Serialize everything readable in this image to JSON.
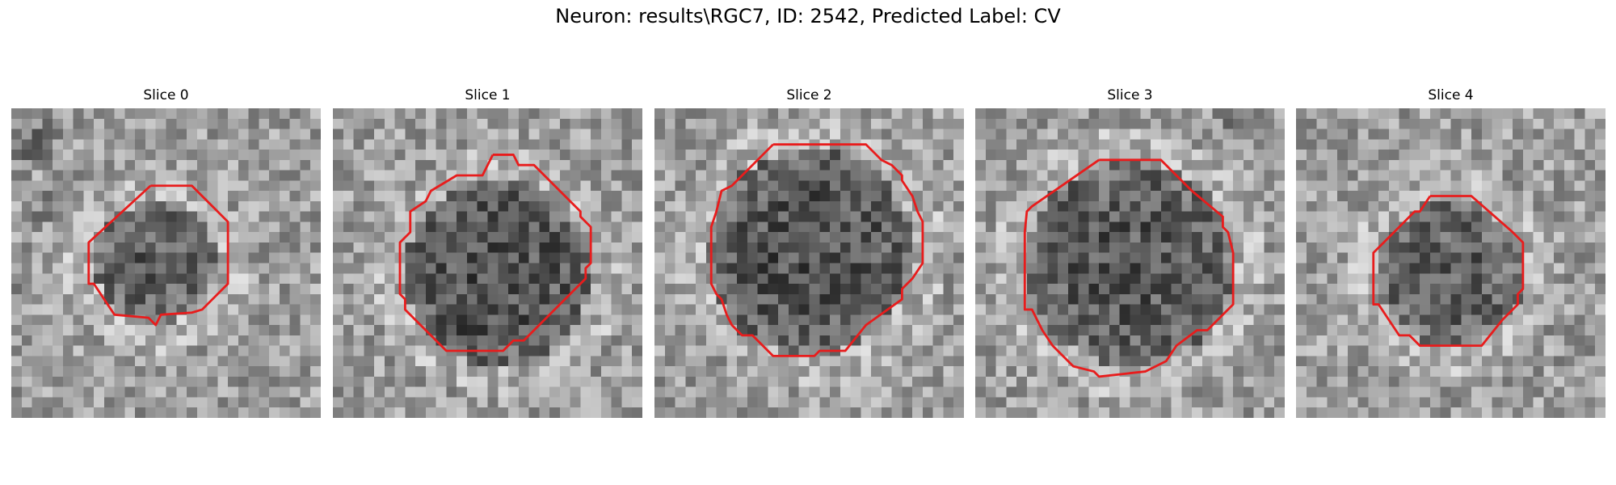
{
  "figure": {
    "title": "Neuron: results\\RGC7, ID: 2542, Predicted Label: CV",
    "colors": {
      "contour": "#e81c1c",
      "background": "#ffffff"
    },
    "grid_size": 30,
    "panels": [
      {
        "label": "Slice 0",
        "seed": 11,
        "dark_center": [
          14,
          15
        ],
        "dark_radius": 6,
        "dark_level": 0.25,
        "dark_blobs": [
          [
            2,
            3,
            3,
            0.25
          ],
          [
            4,
            9,
            3,
            0.2
          ],
          [
            1,
            17,
            2,
            0.15
          ]
        ],
        "contour": [
          [
            13.5,
            7.5
          ],
          [
            17.5,
            7.5
          ],
          [
            21,
            11
          ],
          [
            21,
            17
          ],
          [
            19,
            19
          ],
          [
            18.5,
            19.5
          ],
          [
            17.5,
            19.8
          ],
          [
            14.5,
            20
          ],
          [
            14,
            21
          ],
          [
            13.3,
            20.3
          ],
          [
            10,
            20
          ],
          [
            8,
            17
          ],
          [
            7.5,
            17
          ],
          [
            7.5,
            13
          ],
          [
            13.5,
            7.5
          ]
        ]
      },
      {
        "label": "Slice 1",
        "seed": 23,
        "dark_center": [
          16,
          16
        ],
        "dark_radius": 9,
        "dark_level": 0.3,
        "dark_blobs": [
          [
            13,
            22,
            3,
            0.2
          ]
        ],
        "contour": [
          [
            15.5,
            4.5
          ],
          [
            17.5,
            4.5
          ],
          [
            18,
            5.5
          ],
          [
            19.5,
            5.5
          ],
          [
            24,
            10
          ],
          [
            24,
            10.5
          ],
          [
            25,
            11.5
          ],
          [
            25,
            15
          ],
          [
            24.5,
            15.5
          ],
          [
            24.5,
            16.5
          ],
          [
            18.5,
            22.5
          ],
          [
            17.5,
            22.5
          ],
          [
            16.5,
            23.5
          ],
          [
            11,
            23.5
          ],
          [
            7,
            19.5
          ],
          [
            7,
            18.5
          ],
          [
            6.5,
            18
          ],
          [
            6.5,
            13
          ],
          [
            7.5,
            12
          ],
          [
            7.5,
            10
          ],
          [
            9,
            9
          ],
          [
            9.5,
            8
          ],
          [
            12,
            6.5
          ],
          [
            14.5,
            6.5
          ],
          [
            15.5,
            4.5
          ]
        ]
      },
      {
        "label": "Slice 2",
        "seed": 37,
        "dark_center": [
          15,
          14
        ],
        "dark_radius": 10,
        "dark_level": 0.3,
        "dark_blobs": [],
        "contour": [
          [
            11.5,
            3.5
          ],
          [
            20.5,
            3.5
          ],
          [
            22,
            5
          ],
          [
            23,
            5.5
          ],
          [
            24,
            6.5
          ],
          [
            24,
            7
          ],
          [
            25,
            8.5
          ],
          [
            25.5,
            10
          ],
          [
            26,
            11
          ],
          [
            26,
            15
          ],
          [
            25,
            16.5
          ],
          [
            24,
            17.5
          ],
          [
            24,
            18.5
          ],
          [
            20.5,
            21
          ],
          [
            18.5,
            23.5
          ],
          [
            16,
            23.5
          ],
          [
            15.5,
            24
          ],
          [
            11.5,
            24
          ],
          [
            9.5,
            22
          ],
          [
            8.5,
            22
          ],
          [
            7.5,
            21
          ],
          [
            7,
            20
          ],
          [
            6.5,
            18.5
          ],
          [
            6,
            18
          ],
          [
            5.5,
            17
          ],
          [
            5.5,
            11.5
          ],
          [
            6,
            10
          ],
          [
            6.5,
            8
          ],
          [
            7.5,
            7.5
          ],
          [
            11.5,
            3.5
          ]
        ]
      },
      {
        "label": "Slice 3",
        "seed": 53,
        "dark_center": [
          15,
          15
        ],
        "dark_radius": 10,
        "dark_level": 0.28,
        "dark_blobs": [
          [
            0,
            28,
            2,
            0.2
          ],
          [
            26,
            1,
            3,
            0.2
          ]
        ],
        "contour": [
          [
            12,
            5
          ],
          [
            18,
            5
          ],
          [
            20.5,
            7.5
          ],
          [
            21,
            8
          ],
          [
            24,
            10.5
          ],
          [
            24,
            11.5
          ],
          [
            24.5,
            12
          ],
          [
            25,
            14
          ],
          [
            25,
            19
          ],
          [
            22.5,
            21.5
          ],
          [
            21.5,
            21.5
          ],
          [
            19.5,
            23
          ],
          [
            18.5,
            24.5
          ],
          [
            16.5,
            25.5
          ],
          [
            12,
            26
          ],
          [
            11.5,
            25.5
          ],
          [
            9.5,
            25
          ],
          [
            7.5,
            23
          ],
          [
            6.5,
            21.5
          ],
          [
            5.5,
            19.5
          ],
          [
            4.8,
            19.5
          ],
          [
            4.8,
            12
          ],
          [
            5,
            10
          ],
          [
            5.5,
            9.5
          ],
          [
            12,
            5
          ]
        ]
      },
      {
        "label": "Slice 4",
        "seed": 71,
        "dark_center": [
          15,
          16
        ],
        "dark_radius": 7,
        "dark_level": 0.25,
        "dark_blobs": [],
        "contour": [
          [
            13,
            8.5
          ],
          [
            17,
            8.5
          ],
          [
            21,
            12
          ],
          [
            22,
            13
          ],
          [
            22,
            17.5
          ],
          [
            21.5,
            18
          ],
          [
            21.5,
            19
          ],
          [
            20,
            20.5
          ],
          [
            18,
            23
          ],
          [
            12,
            23
          ],
          [
            11,
            22
          ],
          [
            10,
            22
          ],
          [
            8,
            19
          ],
          [
            7.5,
            19
          ],
          [
            7.5,
            14
          ],
          [
            9,
            12.5
          ],
          [
            10,
            11.5
          ],
          [
            11.5,
            10
          ],
          [
            12,
            10
          ],
          [
            13,
            8.5
          ]
        ]
      }
    ]
  }
}
